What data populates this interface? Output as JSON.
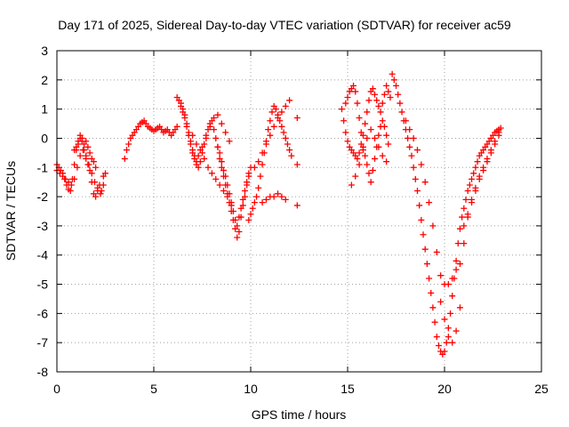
{
  "chart_data": {
    "type": "scatter",
    "title": "Day 171 of 2025, Sidereal Day-to-day VTEC variation (SDTVAR) for receiver ac59",
    "xlabel": "GPS time / hours",
    "ylabel": "SDTVAR / TECUs",
    "xlim": [
      0,
      25
    ],
    "ylim": [
      -8,
      3
    ],
    "xticks": [
      "0",
      "5",
      "10",
      "15",
      "20",
      "25"
    ],
    "yticks": [
      "3",
      "2",
      "1",
      "0",
      "-1",
      "-2",
      "-3",
      "-4",
      "-5",
      "-6",
      "-7",
      "-8"
    ],
    "grid": true,
    "marker": "plus",
    "color": "#ff0000",
    "series": [
      {
        "x": [
          0,
          0.1,
          0.2,
          0.3,
          0.4,
          0.5,
          0.6,
          0.7,
          0.8,
          0.9,
          1.0,
          1.1,
          1.2,
          1.3,
          1.4,
          1.5,
          1.6,
          1.7,
          1.8,
          1.9,
          2.0,
          2.1,
          2.2,
          2.3,
          2.4,
          2.5,
          0,
          0.15,
          0.3,
          0.45,
          0.6,
          0.75,
          0.9,
          1.05,
          1.2,
          1.35,
          1.5,
          1.65,
          1.8,
          1.95,
          2.1,
          2.25,
          2.4,
          0.9,
          1.0,
          1.1,
          1.2,
          1.3,
          1.4,
          1.5,
          1.6,
          1.7,
          1.8,
          1.9,
          2.0,
          3.5,
          3.6,
          3.7,
          3.8,
          3.9,
          4.0,
          4.1,
          4.2,
          4.3,
          4.4,
          4.5,
          4.6,
          4.7,
          4.8,
          4.9,
          5.0,
          5.1,
          5.2,
          5.3,
          5.4,
          5.5,
          5.6,
          5.7,
          5.8,
          5.9,
          6.0,
          6.1,
          6.2,
          6.2,
          6.3,
          6.4,
          6.5,
          6.6,
          6.7,
          6.8,
          6.9,
          7.0,
          7.1,
          7.2,
          7.3,
          7.4,
          7.5,
          7.6,
          7.7,
          7.8,
          7.9,
          8.0,
          8.1,
          8.2,
          8.3,
          8.4,
          8.5,
          8.6,
          8.7,
          8.8,
          8.9,
          9.0,
          9.1,
          9.2,
          9.3,
          9.4,
          9.5,
          9.6,
          9.7,
          9.8,
          9.9,
          10.0,
          6.4,
          6.5,
          6.6,
          6.7,
          6.8,
          6.9,
          7.0,
          7.1,
          7.2,
          7.3,
          7.5,
          7.7,
          7.9,
          8.1,
          8.3,
          8.5,
          8.7,
          8.9,
          7.0,
          7.2,
          7.4,
          7.6,
          7.8,
          8.0,
          8.2,
          8.4,
          8.6,
          8.8,
          9.0,
          8.3,
          8.4,
          8.5,
          8.6,
          8.7,
          8.8,
          8.9,
          9.0,
          9.1,
          9.2,
          9.3,
          9.4,
          9.5,
          9.6,
          9.7,
          9.8,
          9.9,
          9.9,
          10.0,
          10.1,
          10.2,
          10.3,
          10.4,
          10.5,
          10.6,
          10.7,
          10.8,
          10.9,
          11.0,
          11.1,
          11.2,
          11.3,
          11.4,
          11.5,
          11.6,
          11.7,
          11.8,
          11.9,
          12.0,
          12.1,
          10.2,
          10.4,
          10.6,
          10.8,
          11.0,
          11.2,
          11.4,
          11.6,
          11.8,
          12.0,
          10.6,
          10.8,
          11.0,
          11.2,
          11.4,
          11.6,
          11.8,
          12.4,
          12.4,
          12.4,
          14.7,
          14.8,
          14.9,
          15.0,
          15.1,
          15.2,
          15.3,
          15.4,
          15.5,
          15.6,
          15.7,
          15.8,
          15.9,
          16.0,
          16.1,
          16.2,
          16.3,
          16.4,
          16.5,
          16.6,
          16.7,
          16.8,
          16.9,
          17.0,
          17.1,
          17.2,
          14.9,
          15.0,
          15.1,
          15.2,
          15.3,
          15.4,
          15.5,
          15.6,
          15.7,
          15.8,
          15.9,
          16.0,
          16.1,
          16.2,
          16.3,
          16.4,
          16.5,
          16.6,
          16.7,
          16.8,
          16.9,
          17.0,
          17.1,
          15.2,
          15.4,
          15.6,
          15.8,
          16.0,
          16.2,
          16.4,
          16.6,
          16.8,
          17.0,
          17.3,
          17.4,
          17.5,
          17.6,
          17.7,
          17.8,
          17.9,
          18.0,
          18.1,
          18.2,
          18.3,
          18.4,
          18.5,
          18.6,
          18.7,
          18.8,
          18.9,
          19.0,
          19.1,
          19.2,
          19.3,
          19.4,
          19.5,
          19.6,
          19.7,
          19.8,
          19.9,
          20.0,
          20.1,
          20.2,
          20.3,
          20.4,
          20.5,
          20.6,
          20.7,
          20.8,
          20.9,
          21.0,
          21.1,
          21.2,
          21.3,
          21.4,
          21.5,
          21.6,
          21.7,
          21.8,
          21.9,
          22.0,
          22.1,
          22.2,
          22.3,
          22.4,
          22.5,
          22.6,
          22.7,
          22.8,
          22.9,
          18.0,
          18.2,
          18.4,
          18.6,
          18.8,
          19.0,
          19.2,
          19.4,
          19.6,
          19.8,
          20.0,
          20.2,
          20.4,
          20.6,
          20.8,
          21.0,
          21.2,
          21.4,
          21.6,
          21.8,
          22.0,
          22.2,
          22.4,
          22.6,
          22.8,
          19.8,
          20.0,
          20.2,
          20.4,
          20.6,
          20.8,
          21.0,
          21.2,
          21.4,
          21.6,
          21.8,
          22.0,
          22.2,
          22.4,
          22.6,
          22.8
        ],
        "y": [
          -0.9,
          -1.0,
          -1.1,
          -1.2,
          -1.4,
          -1.6,
          -1.75,
          -1.8,
          -1.4,
          -0.9,
          -0.4,
          -0.2,
          0.0,
          -0.1,
          -0.4,
          -0.7,
          -0.9,
          -1.1,
          -1.5,
          -1.9,
          -2.0,
          -1.8,
          -1.6,
          -1.8,
          -1.3,
          -1.2,
          -1.1,
          -1.2,
          -1.3,
          -1.4,
          -1.5,
          -1.6,
          -1.4,
          -1.0,
          -0.6,
          -0.4,
          -0.6,
          -0.9,
          -1.2,
          -1.5,
          -1.7,
          -1.9,
          -1.6,
          -0.4,
          -0.3,
          -0.1,
          0.1,
          0.0,
          -0.2,
          -0.1,
          -0.3,
          -0.5,
          -0.7,
          -0.8,
          -1.0,
          -0.7,
          -0.4,
          -0.2,
          0.0,
          0.1,
          0.2,
          0.3,
          0.4,
          0.5,
          0.55,
          0.6,
          0.5,
          0.4,
          0.35,
          0.3,
          0.25,
          0.3,
          0.35,
          0.4,
          0.3,
          0.2,
          0.25,
          0.3,
          0.2,
          0.1,
          0.2,
          0.3,
          0.4,
          1.4,
          1.3,
          1.2,
          1.0,
          0.8,
          0.5,
          0.2,
          -0.1,
          -0.4,
          -0.6,
          -0.8,
          -1.0,
          -0.8,
          -0.5,
          -0.2,
          0.0,
          0.3,
          0.5,
          0.6,
          0.3,
          0.0,
          -0.3,
          -0.7,
          -1.0,
          -1.3,
          -1.6,
          -1.9,
          -2.2,
          -2.5,
          -2.8,
          -3.1,
          -3.4,
          -3.2,
          -2.7,
          -2.3,
          -2.0,
          -1.6,
          -1.3,
          -1.0,
          1.1,
          0.9,
          0.7,
          0.4,
          0.1,
          -0.2,
          -0.5,
          -0.7,
          -0.9,
          -0.6,
          -0.3,
          0.1,
          0.4,
          0.7,
          0.8,
          0.5,
          0.2,
          -0.1,
          0.1,
          -0.2,
          -0.4,
          -0.7,
          -1.0,
          -1.2,
          -1.4,
          -1.6,
          -1.8,
          -2.0,
          -2.3,
          -0.3,
          -0.5,
          -0.8,
          -1.1,
          -1.3,
          -1.6,
          -1.9,
          -2.2,
          -2.5,
          -2.8,
          -3.0,
          -2.7,
          -2.4,
          -2.1,
          -1.8,
          -1.5,
          -1.2,
          -2.8,
          -2.6,
          -2.4,
          -2.2,
          -2.0,
          -1.7,
          -1.3,
          -0.9,
          -0.5,
          -0.1,
          0.3,
          0.6,
          0.9,
          1.1,
          1.0,
          0.8,
          0.6,
          0.4,
          0.2,
          0.0,
          -0.2,
          -0.4,
          -0.6,
          -1.0,
          -0.8,
          -0.5,
          -0.2,
          0.1,
          0.4,
          0.7,
          0.9,
          1.1,
          1.3,
          -2.2,
          -2.1,
          -2.0,
          -2.0,
          -1.9,
          -2.0,
          -2.1,
          0.7,
          -0.9,
          -2.3,
          1.0,
          0.6,
          0.2,
          -0.1,
          -0.3,
          -0.4,
          -0.5,
          -0.6,
          -0.7,
          -0.5,
          -0.2,
          0.1,
          0.5,
          0.9,
          1.3,
          1.6,
          1.7,
          1.5,
          1.3,
          1.1,
          0.9,
          1.2,
          1.5,
          1.8,
          1.6,
          1.4,
          1.2,
          1.4,
          1.6,
          1.7,
          1.8,
          1.6,
          1.2,
          0.7,
          0.2,
          -0.3,
          -0.6,
          -0.9,
          -1.2,
          -1.5,
          -1.1,
          -0.7,
          -0.3,
          0.1,
          0.4,
          0.6,
          0.4,
          0.1,
          -0.2,
          -1.6,
          -1.3,
          -0.9,
          -0.4,
          0.0,
          0.3,
          0.0,
          -0.3,
          -0.6,
          -0.8,
          2.2,
          2.0,
          1.8,
          1.5,
          1.2,
          0.9,
          0.6,
          0.3,
          0.0,
          -0.3,
          -0.6,
          -1.0,
          -1.4,
          -1.8,
          -2.3,
          -2.8,
          -3.3,
          -3.8,
          -4.3,
          -4.8,
          -5.3,
          -5.8,
          -6.3,
          -6.8,
          -7.1,
          -7.3,
          -7.4,
          -7.3,
          -7.0,
          -6.5,
          -6.0,
          -5.4,
          -4.8,
          -4.2,
          -3.6,
          -3.1,
          -2.7,
          -2.4,
          -2.1,
          -1.8,
          -1.6,
          -1.4,
          -1.2,
          -1.0,
          -0.8,
          -0.6,
          -0.5,
          -0.4,
          -0.3,
          -0.2,
          -0.1,
          0.0,
          0.1,
          0.2,
          0.25,
          0.3,
          0.35,
          0.6,
          0.3,
          0.0,
          -0.4,
          -0.9,
          -1.5,
          -2.2,
          -3.0,
          -3.9,
          -4.7,
          -5.0,
          -5.0,
          -4.8,
          -4.5,
          -4.3,
          -3.6,
          -2.7,
          -2.2,
          -1.8,
          -1.4,
          -1.1,
          -0.8,
          -0.5,
          -0.2,
          0.1,
          -5.6,
          -6.2,
          -6.8,
          -7.0,
          -6.6,
          -5.8,
          -3.0,
          -2.6,
          -2.1,
          -1.7,
          -1.3,
          -1.0,
          -0.7,
          -0.4,
          -0.1,
          0.2
        ]
      }
    ]
  }
}
